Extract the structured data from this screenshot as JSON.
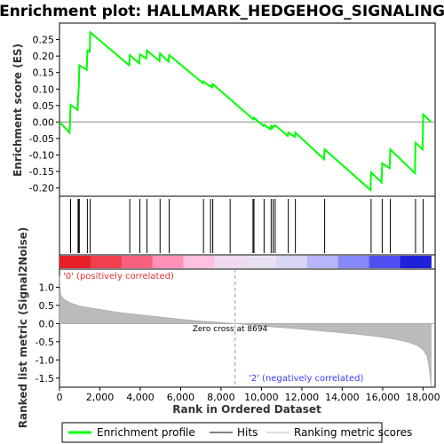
{
  "chart_data": {
    "type": "line",
    "title": "Enrichment plot: HALLMARK_HEDGEHOG_SIGNALING",
    "es_panel": {
      "ylabel": "Enrichment score (ES)",
      "ylim": [
        -0.225,
        0.3
      ],
      "yticks": [
        0.25,
        0.2,
        0.15,
        0.1,
        0.05,
        0.0,
        -0.05,
        -0.1,
        -0.15,
        -0.2
      ],
      "ytick_labels": [
        "0.25",
        "0.20",
        "0.15",
        "0.10",
        "0.05",
        "0.00",
        "-0.05",
        "-0.10",
        "-0.15",
        "-0.20"
      ],
      "series": [
        {
          "name": "Enrichment profile",
          "color": "#00ff00",
          "x": [
            0,
            500,
            550,
            900,
            920,
            960,
            980,
            1350,
            1380,
            1500,
            1520,
            3450,
            3480,
            3950,
            3980,
            4300,
            4330,
            4950,
            4980,
            5400,
            5430,
            7100,
            7130,
            7450,
            7480,
            7560,
            7590,
            9600,
            9630,
            10100,
            10130,
            10450,
            10480,
            10550,
            10580,
            10650,
            10680,
            11300,
            11330,
            11650,
            11680,
            13100,
            13130,
            15400,
            15430,
            15950,
            15980,
            16350,
            16380,
            17600,
            17630,
            17980,
            18010,
            18400
          ],
          "y": [
            0.0,
            -0.032,
            0.052,
            0.037,
            0.075,
            0.108,
            0.172,
            0.158,
            0.217,
            0.213,
            0.272,
            0.172,
            0.203,
            0.178,
            0.205,
            0.193,
            0.217,
            0.185,
            0.208,
            0.183,
            0.203,
            0.118,
            0.123,
            0.108,
            0.11,
            0.105,
            0.115,
            0.008,
            0.013,
            -0.012,
            -0.008,
            -0.022,
            -0.012,
            -0.018,
            -0.012,
            -0.012,
            -0.01,
            -0.042,
            -0.032,
            -0.045,
            -0.032,
            -0.113,
            -0.083,
            -0.206,
            -0.153,
            -0.183,
            -0.125,
            -0.14,
            -0.083,
            -0.155,
            -0.063,
            -0.083,
            0.023,
            0.0
          ]
        }
      ]
    },
    "hits_panel": {
      "name": "Hits",
      "x": [
        550,
        920,
        960,
        980,
        1380,
        1520,
        3480,
        3980,
        4330,
        4980,
        5430,
        7130,
        7480,
        7590,
        8450,
        9580,
        9630,
        10130,
        10480,
        10580,
        10680,
        11330,
        11680,
        13130,
        15430,
        15980,
        16380,
        17630,
        18010
      ]
    },
    "heatmap_colors": [
      "#e8202a",
      "#f04050",
      "#f86080",
      "#ff90b8",
      "#ffc0e0",
      "#f0d8f0",
      "#e8e0f0",
      "#d8d4f4",
      "#b8b4f8",
      "#8888f8",
      "#5050f0",
      "#2020d8"
    ],
    "metric_panel": {
      "name": "Ranking metric scores",
      "ylabel": "Ranked list metric (Signal2Noise)",
      "xlabel": "Rank in Ordered Dataset",
      "ylim": [
        -1.75,
        1.5
      ],
      "yticks": [
        1.0,
        0.5,
        0.0,
        -0.5,
        -1.0,
        -1.5
      ],
      "ytick_labels": [
        "1.0",
        "0.5",
        "0.0",
        "-0.5",
        "-1.0",
        "-1.5"
      ],
      "x": [
        0,
        50,
        200,
        500,
        1000,
        2000,
        3000,
        4000,
        5000,
        6000,
        7000,
        8000,
        8694,
        9500,
        10500,
        11500,
        12500,
        13500,
        14500,
        15500,
        16500,
        17200,
        17700,
        18000,
        18200,
        18300,
        18400
      ],
      "values": [
        1.3,
        0.82,
        0.68,
        0.58,
        0.48,
        0.39,
        0.3,
        0.24,
        0.18,
        0.12,
        0.07,
        0.03,
        0.0,
        -0.04,
        -0.09,
        -0.13,
        -0.18,
        -0.23,
        -0.28,
        -0.34,
        -0.42,
        -0.5,
        -0.6,
        -0.72,
        -0.9,
        -1.2,
        -1.72
      ],
      "color": "#bbbbbb"
    },
    "xlim": [
      0,
      18600
    ],
    "xticks": [
      0,
      2000,
      4000,
      6000,
      8000,
      10000,
      12000,
      14000,
      16000,
      18000
    ],
    "xtick_labels": [
      "0",
      "2,000",
      "4,000",
      "6,000",
      "8,000",
      "10,000",
      "12,000",
      "14,000",
      "16,000",
      "18,000"
    ],
    "zero_cross": 8694,
    "annotations": {
      "positive": "'0' (positively correlated)",
      "negative": "'2' (negatively correlated)",
      "zero_cross": "Zero cross at 8694"
    },
    "legend": {
      "placement": "bottom",
      "items": [
        "Enrichment profile",
        "Hits",
        "Ranking metric scores"
      ],
      "colors": [
        "#00ff00",
        "#000000",
        "#bbbbbb"
      ]
    }
  }
}
